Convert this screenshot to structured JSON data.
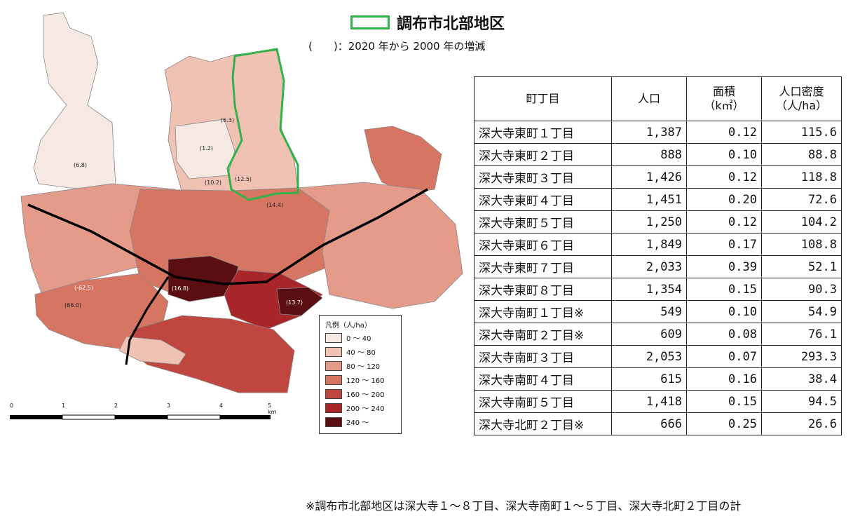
{
  "header": {
    "title": "調布市北部地区",
    "subtitle": "(　　)：2020 年から 2000 年の増減",
    "outline_color": "#33b24a"
  },
  "legend": {
    "title": "凡例（人/ha）",
    "classes": [
      {
        "label": "0 ～ 40",
        "color": "#f6e9e4"
      },
      {
        "label": "40 ～ 80",
        "color": "#f0c2b3"
      },
      {
        "label": "80 ～ 120",
        "color": "#e49b8a"
      },
      {
        "label": "120 ～ 160",
        "color": "#d67561"
      },
      {
        "label": "160 ～ 200",
        "color": "#c0473f"
      },
      {
        "label": "200 ～ 240",
        "color": "#a8262a"
      },
      {
        "label": "240 ～",
        "color": "#5b0e12"
      }
    ]
  },
  "scale_bar": {
    "ticks": [
      "0",
      "1",
      "2",
      "3",
      "4",
      "5 km"
    ]
  },
  "map_labels": [
    "(6.8)",
    "(1.2)",
    "(6.3)",
    "(12.5)",
    "(10.2)",
    "(14.4)",
    "(13.7)",
    "(16.8)",
    "(66.0)",
    "(-62.5)"
  ],
  "table": {
    "headers": [
      "町丁目",
      "人口",
      "面積\n（k㎡）",
      "人口密度\n（人/ha）"
    ],
    "rows": [
      {
        "name": "深大寺東町１丁目",
        "pop": "1,387",
        "area": "0.12",
        "density": "115.6"
      },
      {
        "name": "深大寺東町２丁目",
        "pop": "888",
        "area": "0.10",
        "density": "88.8"
      },
      {
        "name": "深大寺東町３丁目",
        "pop": "1,426",
        "area": "0.12",
        "density": "118.8"
      },
      {
        "name": "深大寺東町４丁目",
        "pop": "1,451",
        "area": "0.20",
        "density": "72.6"
      },
      {
        "name": "深大寺東町５丁目",
        "pop": "1,250",
        "area": "0.12",
        "density": "104.2"
      },
      {
        "name": "深大寺東町６丁目",
        "pop": "1,849",
        "area": "0.17",
        "density": "108.8"
      },
      {
        "name": "深大寺東町７丁目",
        "pop": "2,033",
        "area": "0.39",
        "density": "52.1"
      },
      {
        "name": "深大寺東町８丁目",
        "pop": "1,354",
        "area": "0.15",
        "density": "90.3"
      },
      {
        "name": "深大寺南町１丁目※",
        "pop": "549",
        "area": "0.10",
        "density": "54.9"
      },
      {
        "name": "深大寺南町２丁目※",
        "pop": "609",
        "area": "0.08",
        "density": "76.1"
      },
      {
        "name": "深大寺南町３丁目",
        "pop": "2,053",
        "area": "0.07",
        "density": "293.3"
      },
      {
        "name": "深大寺南町４丁目",
        "pop": "615",
        "area": "0.16",
        "density": "38.4"
      },
      {
        "name": "深大寺南町５丁目",
        "pop": "1,418",
        "area": "0.15",
        "density": "94.5"
      },
      {
        "name": "深大寺北町２丁目※",
        "pop": "666",
        "area": "0.25",
        "density": "26.6"
      }
    ]
  },
  "note": "※調布市北部地区は深大寺１～８丁目、深大寺南町１～５丁目、深大寺北町２丁目の計"
}
